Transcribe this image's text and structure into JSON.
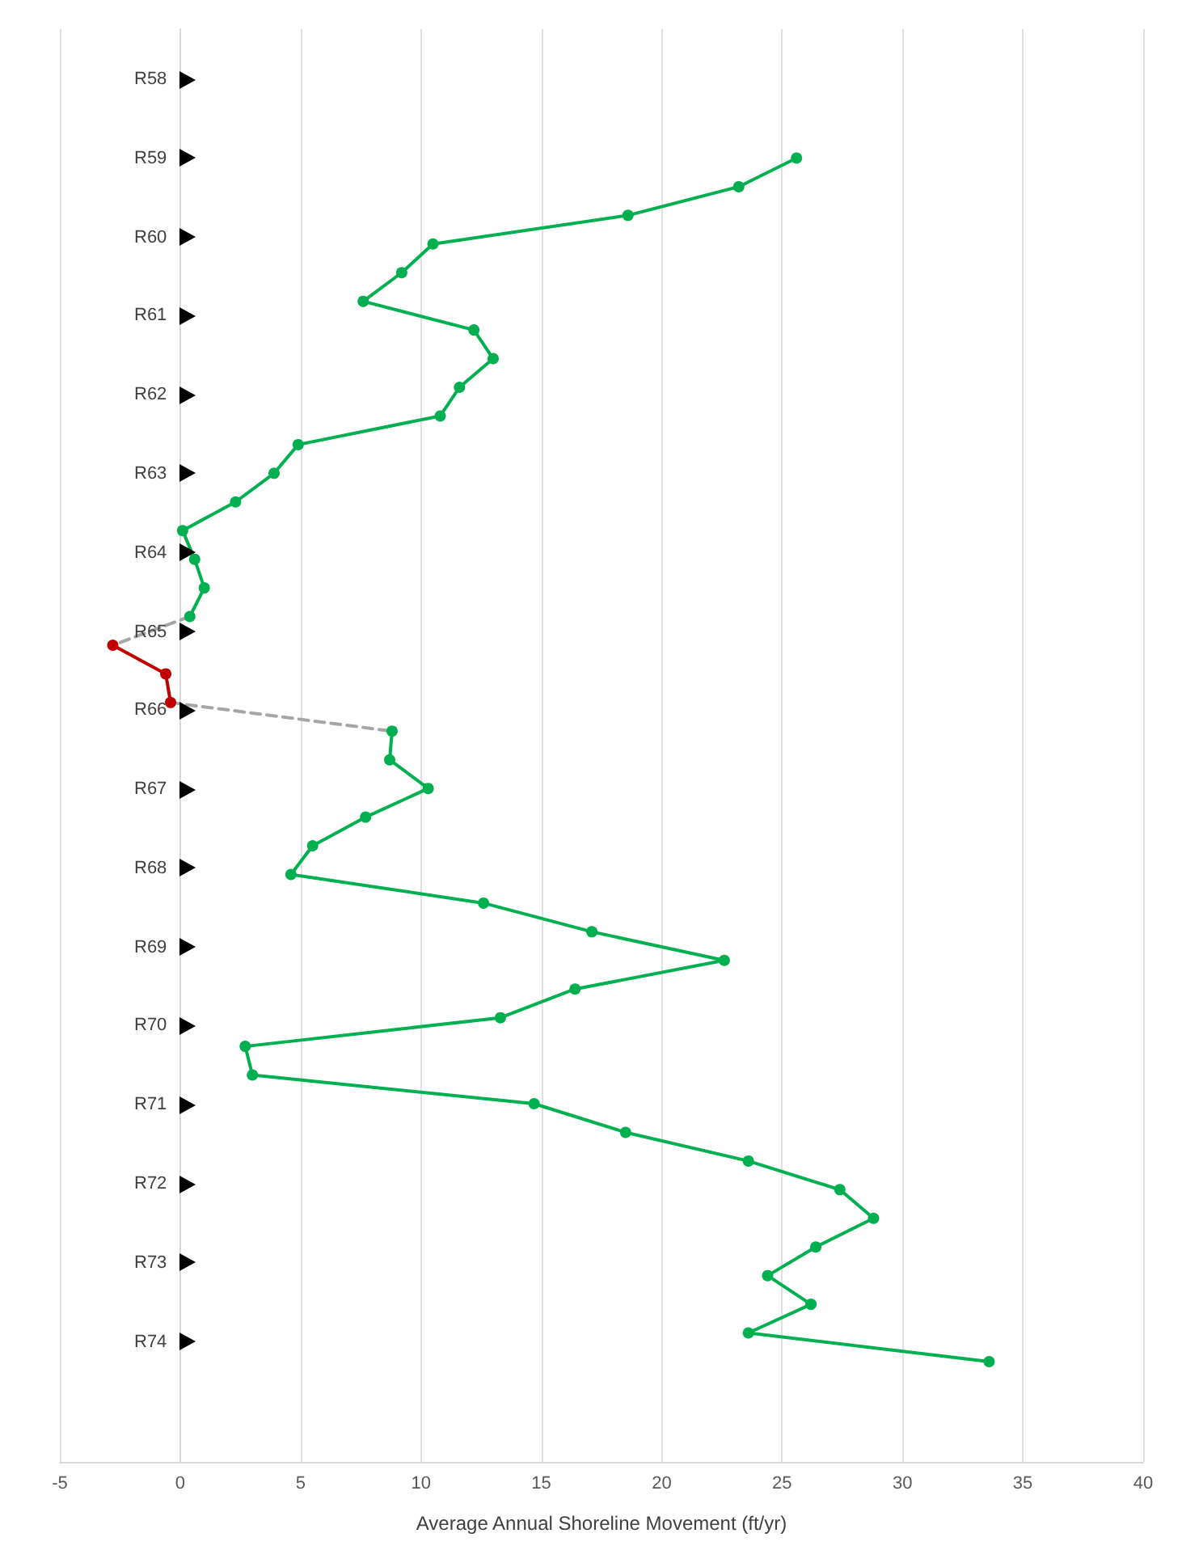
{
  "chart_data": {
    "type": "line",
    "orientation": "horizontal",
    "xlabel": "Average Annual Shoreline Movement (ft/yr)",
    "xlim": [
      -5,
      40
    ],
    "xticks": [
      -5,
      0,
      5,
      10,
      15,
      20,
      25,
      30,
      35,
      40
    ],
    "grid": "x",
    "marker": "circle",
    "categories": [
      null,
      null,
      null,
      null,
      null,
      null,
      null,
      null,
      null,
      null,
      null,
      null,
      null,
      null,
      null,
      null,
      null,
      null,
      null,
      null,
      null,
      null,
      null,
      null,
      null,
      null,
      null,
      null,
      null,
      null,
      null,
      null,
      null,
      null,
      null,
      null,
      null,
      null,
      null,
      null,
      null,
      null,
      null,
      null,
      null,
      null,
      null,
      null,
      null,
      null
    ],
    "series": [
      {
        "color": "#00b050",
        "line_style": "solid",
        "values": [
          null,
          null,
          null,
          null,
          25.6,
          23.2,
          18.6,
          10.5,
          9.2,
          7.6,
          12.2,
          13.0,
          11.6,
          10.8,
          4.9,
          3.9,
          2.3,
          0.1,
          0.6,
          1.0,
          0.4,
          null,
          null,
          null,
          8.8,
          8.7,
          10.3,
          7.7,
          5.5,
          4.6,
          12.6,
          17.1,
          22.6,
          16.4,
          13.3,
          2.7,
          3.0,
          14.7,
          18.5,
          23.6,
          27.4,
          28.8,
          26.4,
          24.4,
          26.2,
          23.6,
          33.6,
          null,
          null,
          null
        ]
      },
      {
        "color": "#c00000",
        "line_style": "solid",
        "values": [
          null,
          null,
          null,
          null,
          null,
          null,
          null,
          null,
          null,
          null,
          null,
          null,
          null,
          null,
          null,
          null,
          null,
          null,
          null,
          null,
          null,
          -2.8,
          -0.6,
          -0.4,
          null,
          null,
          null,
          null,
          null,
          null,
          null,
          null,
          null,
          null,
          null,
          null,
          null,
          null,
          null,
          null,
          null,
          null,
          null,
          null,
          null,
          null,
          null,
          null,
          null,
          null
        ]
      },
      {
        "color": "#a6a6a6",
        "marker": "none",
        "line_style": "dashed",
        "values": [
          null,
          null,
          null,
          null,
          null,
          null,
          null,
          null,
          null,
          null,
          null,
          null,
          null,
          null,
          null,
          null,
          null,
          null,
          null,
          null,
          0.4,
          -2.8,
          null,
          -0.4,
          8.8,
          null,
          null,
          null,
          null,
          null,
          null,
          null,
          null,
          null,
          null,
          null,
          null,
          null,
          null,
          null,
          null,
          null,
          null,
          null,
          null,
          null,
          null,
          null,
          null,
          null
        ]
      }
    ],
    "annotations": [
      "R58",
      "R59",
      "R60",
      "R61",
      "R62",
      "R63",
      "R64",
      "R65",
      "R66",
      "R67",
      "R68",
      "R69",
      "R70",
      "R71",
      "R72",
      "R73",
      "R74"
    ]
  }
}
